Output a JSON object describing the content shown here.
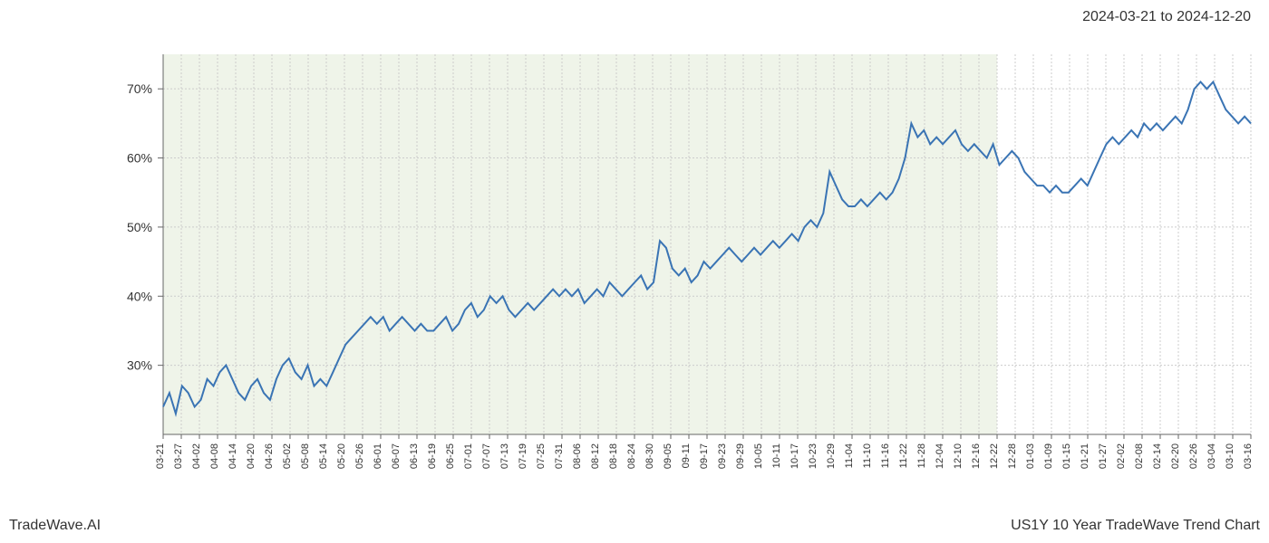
{
  "header": {
    "date_range": "2024-03-21 to 2024-12-20"
  },
  "footer": {
    "left": "TradeWave.AI",
    "right": "US1Y 10 Year TradeWave Trend Chart"
  },
  "chart": {
    "type": "line",
    "background_color": "#ffffff",
    "shaded_region_color": "#e8f0e0",
    "line_color": "#3a74b4",
    "line_width": 2,
    "grid_color": "#cccccc",
    "axis_color": "#666666",
    "y_axis": {
      "ticks": [
        30,
        40,
        50,
        60,
        70
      ],
      "tick_labels": [
        "30%",
        "40%",
        "50%",
        "60%",
        "70%"
      ],
      "min": 20,
      "max": 75,
      "label_fontsize": 14
    },
    "x_axis": {
      "labels": [
        "03-21",
        "03-27",
        "04-02",
        "04-08",
        "04-14",
        "04-20",
        "04-26",
        "05-02",
        "05-08",
        "05-14",
        "05-20",
        "05-26",
        "06-01",
        "06-07",
        "06-13",
        "06-19",
        "06-25",
        "07-01",
        "07-07",
        "07-13",
        "07-19",
        "07-25",
        "07-31",
        "08-06",
        "08-12",
        "08-18",
        "08-24",
        "08-30",
        "09-05",
        "09-11",
        "09-17",
        "09-23",
        "09-29",
        "10-05",
        "10-11",
        "10-17",
        "10-23",
        "10-29",
        "11-04",
        "11-10",
        "11-16",
        "11-22",
        "11-28",
        "12-04",
        "12-10",
        "12-16",
        "12-22",
        "12-28",
        "01-03",
        "01-09",
        "01-15",
        "01-21",
        "01-27",
        "02-02",
        "02-08",
        "02-14",
        "02-20",
        "02-26",
        "03-04",
        "03-10",
        "03-16"
      ],
      "label_fontsize": 11
    },
    "shaded_region": {
      "start_index": 0,
      "end_index": 46
    },
    "series": {
      "values": [
        24,
        26,
        23,
        27,
        26,
        24,
        25,
        28,
        27,
        29,
        30,
        28,
        26,
        25,
        27,
        28,
        26,
        25,
        28,
        30,
        31,
        29,
        28,
        30,
        27,
        28,
        27,
        29,
        31,
        33,
        34,
        35,
        36,
        37,
        36,
        37,
        35,
        36,
        37,
        36,
        35,
        36,
        35,
        35,
        36,
        37,
        35,
        36,
        38,
        39,
        37,
        38,
        40,
        39,
        40,
        38,
        37,
        38,
        39,
        38,
        39,
        40,
        41,
        40,
        41,
        40,
        41,
        39,
        40,
        41,
        40,
        42,
        41,
        40,
        41,
        42,
        43,
        41,
        42,
        48,
        47,
        44,
        43,
        44,
        42,
        43,
        45,
        44,
        45,
        46,
        47,
        46,
        45,
        46,
        47,
        46,
        47,
        48,
        47,
        48,
        49,
        48,
        50,
        51,
        50,
        52,
        58,
        56,
        54,
        53,
        53,
        54,
        53,
        54,
        55,
        54,
        55,
        57,
        60,
        65,
        63,
        64,
        62,
        63,
        62,
        63,
        64,
        62,
        61,
        62,
        61,
        60,
        62,
        59,
        60,
        61,
        60,
        58,
        57,
        56,
        56,
        55,
        56,
        55,
        55,
        56,
        57,
        56,
        58,
        60,
        62,
        63,
        62,
        63,
        64,
        63,
        65,
        64,
        65,
        64,
        65,
        66,
        65,
        67,
        70,
        71,
        70,
        71,
        69,
        67,
        66,
        65,
        66,
        65
      ]
    }
  }
}
